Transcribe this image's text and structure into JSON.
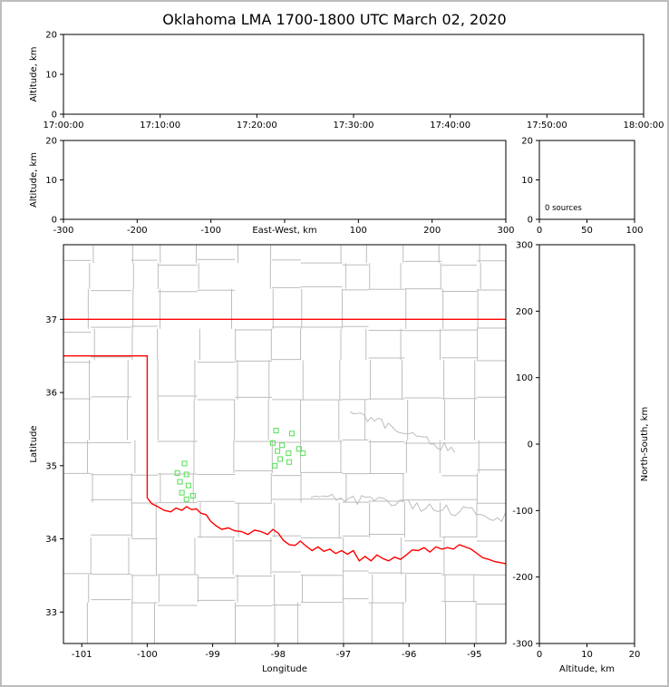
{
  "title": "Oklahoma LMA 1700-1800 UTC March 02, 2020",
  "colors": {
    "state_border": "#ff0000",
    "county_lines": "#bdbdbd",
    "source_marker": "#63e163",
    "axis": "#000000",
    "frame": "#bdbdbd"
  },
  "chart_data": [
    {
      "id": "time_height",
      "type": "scatter",
      "xlabel": "",
      "ylabel": "Altitude, km",
      "xlim": [
        0,
        6
      ],
      "xticks": [
        0,
        1,
        2,
        3,
        4,
        5,
        6
      ],
      "xtick_labels": [
        "17:00:00",
        "17:10:00",
        "17:20:00",
        "17:30:00",
        "17:40:00",
        "17:50:00",
        "18:00:00"
      ],
      "ylim": [
        0,
        20
      ],
      "yticks": [
        0,
        10,
        20
      ],
      "points": []
    },
    {
      "id": "ew_height",
      "type": "scatter",
      "xlabel": "East-West, km",
      "xlabel_inline": true,
      "ylabel": "Altitude, km",
      "xlim": [
        -300,
        300
      ],
      "xticks": [
        -300,
        -200,
        -100,
        0,
        100,
        200,
        300
      ],
      "xtick_labels": [
        "-300",
        "-200",
        "-100",
        "",
        "100",
        "200",
        "300"
      ],
      "ylim": [
        0,
        20
      ],
      "yticks": [
        0,
        10,
        20
      ],
      "points": []
    },
    {
      "id": "alt_histogram",
      "type": "line",
      "annotation": "0 sources",
      "xlim": [
        0,
        100
      ],
      "xticks": [
        0,
        50,
        100
      ],
      "ylim": [
        0,
        20
      ],
      "yticks": [
        0,
        10,
        20
      ],
      "points": []
    },
    {
      "id": "plan_map",
      "type": "scatter",
      "xlabel": "Longitude",
      "ylabel": "Latitude",
      "xlim": [
        -101.28,
        -94.52
      ],
      "xticks": [
        -101,
        -100,
        -99,
        -98,
        -97,
        -96,
        -95
      ],
      "ylim": [
        32.57,
        38.02
      ],
      "yticks": [
        33,
        34,
        35,
        36,
        37
      ],
      "marker": "open-square",
      "sources": [
        [
          -98.03,
          35.48
        ],
        [
          -97.79,
          35.44
        ],
        [
          -98.08,
          35.31
        ],
        [
          -97.94,
          35.28
        ],
        [
          -98.01,
          35.2
        ],
        [
          -97.84,
          35.17
        ],
        [
          -97.68,
          35.23
        ],
        [
          -97.97,
          35.09
        ],
        [
          -97.83,
          35.05
        ],
        [
          -98.05,
          35.0
        ],
        [
          -97.62,
          35.17
        ],
        [
          -99.43,
          35.03
        ],
        [
          -99.54,
          34.9
        ],
        [
          -99.4,
          34.88
        ],
        [
          -99.5,
          34.78
        ],
        [
          -99.37,
          34.73
        ],
        [
          -99.47,
          34.63
        ],
        [
          -99.3,
          34.59
        ],
        [
          -99.4,
          34.54
        ]
      ],
      "state_border": {
        "north": [
          [
            -101.28,
            37
          ],
          [
            -94.52,
            37
          ]
        ],
        "west_south": [
          [
            -101.28,
            36.5
          ],
          [
            -100,
            36.5
          ],
          [
            -100,
            34.56
          ],
          [
            -99.93,
            34.48
          ],
          [
            -99.84,
            34.44
          ],
          [
            -99.74,
            34.39
          ],
          [
            -99.64,
            34.37
          ],
          [
            -99.56,
            34.42
          ],
          [
            -99.47,
            34.39
          ],
          [
            -99.4,
            34.44
          ],
          [
            -99.32,
            34.4
          ],
          [
            -99.25,
            34.41
          ],
          [
            -99.18,
            34.35
          ],
          [
            -99.1,
            34.33
          ],
          [
            -99.03,
            34.24
          ],
          [
            -98.95,
            34.18
          ],
          [
            -98.86,
            34.13
          ],
          [
            -98.76,
            34.15
          ],
          [
            -98.66,
            34.11
          ],
          [
            -98.56,
            34.1
          ],
          [
            -98.46,
            34.06
          ],
          [
            -98.36,
            34.12
          ],
          [
            -98.26,
            34.1
          ],
          [
            -98.16,
            34.06
          ],
          [
            -98.08,
            34.13
          ],
          [
            -98.0,
            34.08
          ],
          [
            -97.92,
            33.98
          ],
          [
            -97.83,
            33.92
          ],
          [
            -97.74,
            33.91
          ],
          [
            -97.66,
            33.97
          ],
          [
            -97.57,
            33.9
          ],
          [
            -97.48,
            33.84
          ],
          [
            -97.39,
            33.89
          ],
          [
            -97.3,
            33.83
          ],
          [
            -97.21,
            33.86
          ],
          [
            -97.12,
            33.8
          ],
          [
            -97.03,
            33.84
          ],
          [
            -96.94,
            33.79
          ],
          [
            -96.85,
            33.84
          ],
          [
            -96.76,
            33.7
          ],
          [
            -96.67,
            33.76
          ],
          [
            -96.58,
            33.7
          ],
          [
            -96.49,
            33.78
          ],
          [
            -96.4,
            33.73
          ],
          [
            -96.31,
            33.7
          ],
          [
            -96.22,
            33.75
          ],
          [
            -96.13,
            33.72
          ],
          [
            -96.04,
            33.78
          ],
          [
            -95.95,
            33.85
          ],
          [
            -95.86,
            33.84
          ],
          [
            -95.77,
            33.88
          ],
          [
            -95.68,
            33.82
          ],
          [
            -95.59,
            33.89
          ],
          [
            -95.5,
            33.86
          ],
          [
            -95.41,
            33.88
          ],
          [
            -95.32,
            33.86
          ],
          [
            -95.23,
            33.92
          ],
          [
            -95.14,
            33.89
          ],
          [
            -95.05,
            33.86
          ],
          [
            -94.96,
            33.8
          ],
          [
            -94.87,
            33.74
          ],
          [
            -94.78,
            33.72
          ],
          [
            -94.69,
            33.69
          ],
          [
            -94.52,
            33.66
          ]
        ]
      }
    },
    {
      "id": "ns_height",
      "type": "scatter",
      "xlabel": "Altitude, km",
      "ylabel_right": "North-South, km",
      "xlim": [
        0,
        20
      ],
      "xticks": [
        0,
        10,
        20
      ],
      "ylim": [
        -300,
        300
      ],
      "yticks": [
        -300,
        -200,
        -100,
        0,
        100,
        200,
        300
      ],
      "points": []
    }
  ]
}
